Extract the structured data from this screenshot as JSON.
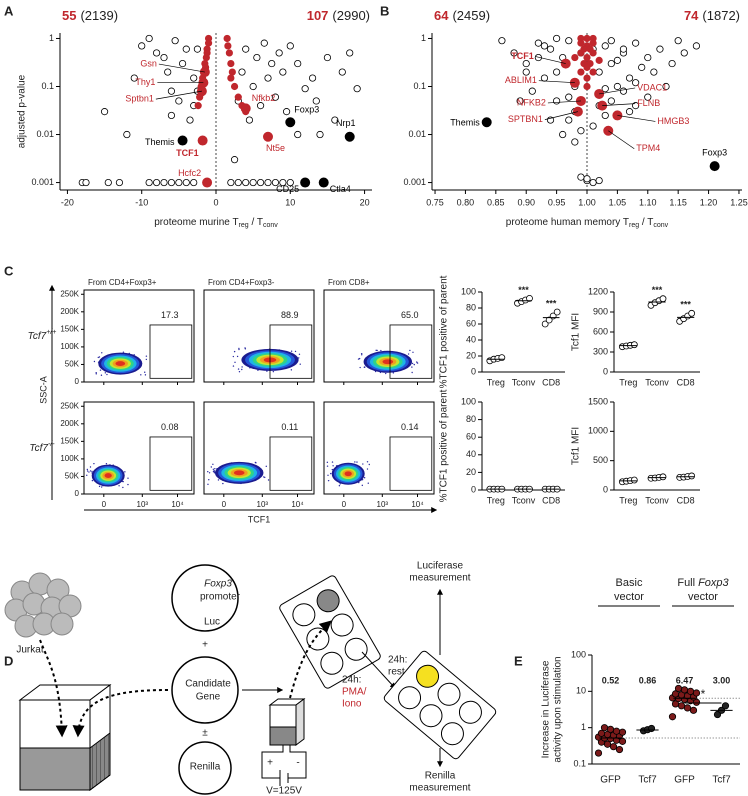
{
  "panel_labels": [
    "A",
    "B",
    "C",
    "D",
    "E"
  ],
  "chart_data": [
    {
      "type": "scatter",
      "log_y": true,
      "left_count": 55,
      "left_total": "(2139)",
      "right_count": 107,
      "right_total": "(2990)",
      "count_color": "#c0272d",
      "ylabel": "adjusted p-value",
      "xlabel": [
        "proteome murine T",
        "reg",
        " / T",
        "conv"
      ],
      "xlim": [
        -21,
        21
      ],
      "xticks": [
        -20,
        -10,
        0,
        10,
        20
      ],
      "ylim": [
        0.0007,
        1.3
      ],
      "yticks": [
        0.001,
        0.01,
        0.1,
        1
      ],
      "reference_x": 0,
      "series": [
        {
          "color": "#000",
          "fill": "#fff",
          "x": [
            -18,
            -17.5,
            -14.5,
            -13,
            -15,
            -12,
            -11,
            -10,
            -9,
            -8,
            -7,
            -6.5,
            -6,
            -5,
            -5.5,
            -4.5,
            -4,
            -3.5,
            -3,
            -2.5,
            -7,
            -6,
            -5,
            -4,
            -3,
            -8,
            -9,
            -6,
            -3,
            -2.5,
            2.5,
            3,
            3.5,
            4,
            4.5,
            5,
            5.5,
            6,
            6.5,
            7,
            7.5,
            8,
            8.5,
            9,
            9.5,
            10,
            11,
            12,
            13,
            13.5,
            15,
            17,
            19,
            14,
            16,
            11,
            18,
            2,
            3,
            4,
            5,
            6,
            7,
            8,
            9,
            10
          ],
          "y": [
            0.001,
            0.001,
            0.001,
            0.001,
            0.03,
            0.01,
            0.15,
            0.7,
            1,
            0.5,
            0.4,
            0.2,
            0.08,
            0.05,
            0.9,
            0.3,
            0.6,
            0.02,
            0.15,
            0.6,
            0.001,
            0.001,
            0.001,
            0.001,
            0.001,
            0.001,
            0.001,
            0.025,
            0.04,
            0.08,
            0.003,
            0.05,
            0.2,
            0.6,
            0.02,
            0.1,
            0.4,
            0.04,
            0.8,
            0.15,
            0.3,
            0.06,
            0.5,
            0.2,
            0.03,
            0.7,
            0.3,
            0.09,
            0.15,
            0.05,
            0.4,
            0.2,
            0.09,
            0.01,
            0.02,
            0.01,
            0.5,
            0.001,
            0.001,
            0.001,
            0.001,
            0.001,
            0.001,
            0.001,
            0.001,
            0.001
          ]
        },
        {
          "color": "#c0272d",
          "fill": "#c0272d",
          "x": [
            -1,
            -1,
            -1.2,
            -1.3,
            -1.5,
            -1.6,
            -1.8,
            -2,
            -2.2,
            -2.4,
            -1.2,
            -1.4,
            1.5,
            1.6,
            1.8,
            2,
            2.2,
            2.5,
            3,
            3.5,
            4,
            2
          ],
          "y": [
            1,
            0.8,
            0.6,
            0.4,
            0.3,
            0.2,
            0.15,
            0.1,
            0.06,
            0.04,
            0.5,
            0.25,
            1,
            0.7,
            0.5,
            0.3,
            0.2,
            0.1,
            0.06,
            0.04,
            0.03,
            0.15
          ]
        }
      ],
      "labeled": [
        {
          "label": "Gsn",
          "x": -1.5,
          "y": 0.2,
          "color": "#c0272d"
        },
        {
          "label": "Thy1",
          "x": -1.7,
          "y": 0.12,
          "color": "#c0272d"
        },
        {
          "label": "Sptbn1",
          "x": -1.9,
          "y": 0.08,
          "color": "#c0272d"
        },
        {
          "label": "TCF1",
          "x": -1.8,
          "y": 0.0075,
          "color": "#c0272d",
          "bold": true
        },
        {
          "label": "Themis",
          "x": -4.5,
          "y": 0.0075,
          "color": "#000"
        },
        {
          "label": "Hcfc2",
          "x": -1.2,
          "y": 0.001,
          "color": "#c0272d"
        },
        {
          "label": "Nfkb2",
          "x": 4,
          "y": 0.035,
          "color": "#c0272d"
        },
        {
          "label": "Nt5e",
          "x": 7,
          "y": 0.009,
          "color": "#c0272d"
        },
        {
          "label": "Foxp3",
          "x": 10,
          "y": 0.018,
          "color": "#000"
        },
        {
          "label": "Nrp1",
          "x": 18,
          "y": 0.009,
          "color": "#000"
        },
        {
          "label": "CD25",
          "x": 12,
          "y": 0.001,
          "color": "#000"
        },
        {
          "label": "Ctla4",
          "x": 14.5,
          "y": 0.001,
          "color": "#000"
        }
      ]
    },
    {
      "type": "scatter",
      "log_y": true,
      "left_count": 64,
      "left_total": "(2459)",
      "right_count": 74,
      "right_total": "(1872)",
      "count_color": "#c0272d",
      "xlabel": [
        "proteome human memory T",
        "reg",
        " / T",
        "conv"
      ],
      "xlim": [
        0.745,
        1.255
      ],
      "xticks": [
        0.75,
        {
          "value": 0.8,
          "label": "0.80"
        },
        0.85,
        {
          "value": 0.9,
          "label": "0.90"
        },
        0.95,
        {
          "value": 1,
          "label": "1.00"
        },
        1.05,
        {
          "value": 1.1,
          "label": "1.10"
        },
        1.15,
        {
          "value": 1.2,
          "label": "1.20"
        },
        1.25
      ],
      "ylim": [
        0.0007,
        1.3
      ],
      "yticks": [
        0.001,
        0.01,
        0.1,
        1
      ],
      "reference_x": 1,
      "series": [
        {
          "color": "#000",
          "fill": "#fff",
          "x": [
            0.88,
            0.9,
            0.92,
            0.93,
            0.94,
            0.95,
            0.96,
            0.97,
            0.97,
            0.98,
            0.98,
            0.99,
            0.99,
            1.01,
            1.01,
            1.02,
            1.02,
            1.03,
            1.03,
            1.04,
            1.05,
            1.06,
            1.07,
            1.08,
            1.09,
            1.1,
            1.12,
            1.14,
            1.16,
            1.18,
            0.86,
            0.89,
            0.91,
            0.92,
            0.94,
            0.95,
            0.96,
            0.97,
            1.03,
            1.04,
            1.05,
            1.06,
            1.07,
            1.08,
            1.1,
            1.11,
            1.13,
            1.15,
            0.93,
            0.95,
            0.98,
            1.0,
            1.0,
            1.01,
            1.02,
            0.99,
            1.06,
            1.04,
            0.9,
            1.08
          ],
          "y": [
            0.5,
            0.3,
            0.8,
            0.15,
            0.6,
            0.05,
            0.4,
            0.02,
            0.9,
            0.1,
            0.03,
            0.5,
            0.012,
            0.6,
            0.015,
            0.2,
            0.04,
            0.7,
            0.025,
            0.3,
            0.1,
            0.5,
            0.15,
            0.8,
            0.25,
            0.4,
            0.6,
            0.3,
            0.5,
            0.7,
            0.9,
            0.05,
            0.08,
            0.4,
            0.02,
            0.2,
            0.01,
            0.06,
            0.09,
            0.05,
            0.35,
            0.08,
            0.03,
            0.12,
            0.06,
            0.2,
            0.1,
            0.9,
            0.7,
            1,
            0.007,
            0.0011,
            0.0012,
            0.001,
            0.0011,
            0.0013,
            0.6,
            0.9,
            0.2,
            0.04
          ]
        },
        {
          "color": "#c0272d",
          "fill": "#c0272d",
          "x": [
            0.99,
            1.0,
            1.01,
            0.99,
            1.0,
            1.01,
            0.99,
            1.0,
            1.01,
            0.995,
            1.005,
            0.99,
            1.0,
            1.01,
            1.0,
            0.995,
            1.005,
            1.0,
            0.98,
            1.02
          ],
          "y": [
            1,
            1,
            1,
            0.8,
            0.7,
            0.8,
            0.5,
            0.4,
            0.5,
            0.3,
            0.3,
            0.2,
            0.15,
            0.2,
            0.1,
            0.6,
            0.6,
            0.25,
            0.4,
            0.35
          ]
        }
      ],
      "labeled": [
        {
          "label": "TCF1",
          "x": 0.965,
          "y": 0.3,
          "color": "#c0272d",
          "bold": true
        },
        {
          "label": "ABLIM1",
          "x": 0.98,
          "y": 0.12,
          "color": "#c0272d"
        },
        {
          "label": "NFKB2",
          "x": 0.99,
          "y": 0.05,
          "color": "#c0272d"
        },
        {
          "label": "SPTBN1",
          "x": 0.985,
          "y": 0.03,
          "color": "#c0272d"
        },
        {
          "label": "VDAC1",
          "x": 1.02,
          "y": 0.07,
          "color": "#c0272d"
        },
        {
          "label": "FLNB",
          "x": 1.025,
          "y": 0.04,
          "color": "#c0272d"
        },
        {
          "label": "HMGB3",
          "x": 1.05,
          "y": 0.025,
          "color": "#c0272d"
        },
        {
          "label": "TPM4",
          "x": 1.035,
          "y": 0.012,
          "color": "#c0272d"
        },
        {
          "label": "Themis",
          "x": 0.835,
          "y": 0.018,
          "color": "#000"
        },
        {
          "label": "Foxp3",
          "x": 1.21,
          "y": 0.0022,
          "color": "#000"
        }
      ]
    },
    {
      "type": "dot",
      "ylabel": "%TCF1 positive of parent",
      "ylim": [
        0,
        100
      ],
      "yticks": [
        0,
        20,
        40,
        60,
        80,
        100
      ],
      "categories": [
        "Treg",
        "Tconv",
        "CD8"
      ],
      "color": "#000",
      "points": [
        [
          14,
          16,
          17,
          18
        ],
        [
          86,
          88,
          90,
          92
        ],
        [
          60,
          65,
          70,
          75
        ]
      ],
      "centers": [
        16,
        89,
        68
      ],
      "stars": [
        null,
        "***",
        "***"
      ]
    },
    {
      "type": "dot",
      "ylabel": "Tcf1 MFI",
      "ylim": [
        0,
        1200
      ],
      "yticks": [
        0,
        300,
        600,
        900,
        1200
      ],
      "categories": [
        "Treg",
        "Tconv",
        "CD8"
      ],
      "color": "#000",
      "points": [
        [
          380,
          390,
          400,
          410
        ],
        [
          1000,
          1040,
          1070,
          1100
        ],
        [
          760,
          800,
          840,
          880
        ]
      ],
      "centers": [
        395,
        1050,
        820
      ],
      "stars": [
        null,
        "***",
        "***"
      ]
    },
    {
      "type": "dot",
      "ylabel": "%TCF1 positive of parent",
      "ylim": [
        0,
        100
      ],
      "yticks": [
        0,
        20,
        40,
        60,
        80,
        100
      ],
      "categories": [
        "Treg",
        "Tconv",
        "CD8"
      ],
      "color": "#000",
      "points": [
        [
          1,
          1,
          1,
          1
        ],
        [
          1,
          1,
          1,
          1
        ],
        [
          1,
          1,
          1,
          1
        ]
      ],
      "centers": [
        1,
        1,
        1
      ]
    },
    {
      "type": "dot",
      "ylabel": "Tcf1 MFI",
      "ylim": [
        0,
        1500
      ],
      "yticks": [
        0,
        500,
        1000,
        1500
      ],
      "categories": [
        "Treg",
        "Tconv",
        "CD8"
      ],
      "color": "#000",
      "points": [
        [
          140,
          150,
          160,
          170
        ],
        [
          200,
          205,
          215,
          225
        ],
        [
          215,
          220,
          230,
          240
        ]
      ],
      "centers": [
        155,
        210,
        225
      ]
    },
    {
      "type": "dot",
      "log_y": true,
      "filled": true,
      "ylabel": [
        "Increase in Luciferase",
        "activity upon stimulation"
      ],
      "ylim": [
        0.1,
        100
      ],
      "yticks": [
        0.1,
        1,
        10,
        100
      ],
      "categories": [
        "GFP",
        "Tcf7",
        "GFP",
        "Tcf7"
      ],
      "colors": [
        "#7b1a1a",
        "#222",
        "#7b1a1a",
        "#222"
      ],
      "points": [
        [
          0.2,
          0.25,
          0.3,
          0.35,
          0.4,
          0.42,
          0.45,
          0.5,
          0.52,
          0.55,
          0.6,
          0.62,
          0.65,
          0.7,
          0.75,
          0.8,
          0.9,
          1.0
        ],
        [
          0.82,
          0.88,
          0.95
        ],
        [
          2.0,
          3.0,
          3.5,
          4.0,
          4.5,
          5.0,
          5.5,
          6.0,
          6.3,
          6.6,
          7.0,
          7.5,
          8.0,
          8.5,
          9.0,
          10,
          11,
          12
        ],
        [
          2.3,
          3.0,
          4.0
        ]
      ],
      "centers": [
        0.52,
        0.86,
        6.47,
        3.0
      ],
      "value_labels": [
        "0.52",
        "0.86",
        "6.47",
        "3.00"
      ],
      "groups": [
        {
          "title": [
            "Basic"
          ],
          "subtitle": "vector"
        },
        {
          "title": [
            "Full",
            "Foxp3"
          ],
          "subtitle": "vector"
        }
      ],
      "significance": "*"
    }
  ],
  "flow": {
    "columns": [
      "From CD4+Foxp3+",
      "From CD4+Foxp3-",
      "From CD8+"
    ],
    "rows": [
      {
        "label": [
          "Tcf7",
          "+/+"
        ],
        "gates": [
          "17.3",
          "88.9",
          "65.0"
        ]
      },
      {
        "label": [
          "Tcf7",
          "-/-"
        ],
        "gates": [
          "0.08",
          "0.11",
          "0.14"
        ]
      }
    ],
    "ylabel": "SSC-A",
    "xlabel": "TCF1",
    "ylim": [
      0,
      262144
    ],
    "yticks": [
      0,
      {
        "value": 50000,
        "label": "50K"
      },
      {
        "value": 100000,
        "label": "100K"
      },
      {
        "value": 150000,
        "label": "150K"
      },
      {
        "value": 200000,
        "label": "200K"
      },
      {
        "value": 250000,
        "label": "250K"
      }
    ],
    "xticks": [
      0,
      {
        "value": 1000,
        "label": "10³"
      },
      {
        "value": 10000,
        "label": "10⁴"
      }
    ]
  },
  "diagram": {
    "cell_label": "Jurkat",
    "plasmids": [
      {
        "lines": [
          "Foxp3",
          "promoter"
        ],
        "feature": "Luc"
      },
      {
        "lines": [
          "Candidate",
          "Gene"
        ]
      },
      {
        "lines": [
          "Renilla"
        ]
      }
    ],
    "operators": [
      "+",
      "±"
    ],
    "electrodes": [
      "+",
      "-"
    ],
    "voltage": "V=125V",
    "steps": [
      {
        "lines": [
          "24h:",
          "PMA/",
          "Iono"
        ]
      },
      {
        "lines": [
          "24h:",
          "rest"
        ]
      }
    ],
    "readouts": [
      [
        "Luciferase",
        "measurement"
      ],
      [
        "Renilla",
        "measurement"
      ]
    ]
  }
}
